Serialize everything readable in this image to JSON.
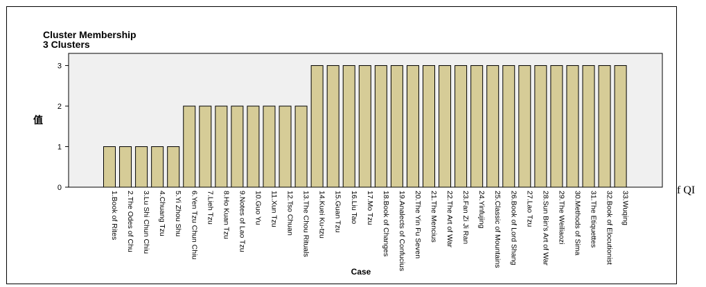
{
  "chart_data": {
    "type": "bar",
    "title": "Cluster Membership",
    "subtitle": "3 Clusters",
    "xlabel": "Case",
    "ylabel": "值",
    "ylim": [
      0,
      3.3
    ],
    "yticks": [
      0,
      1,
      2,
      3
    ],
    "grid": false,
    "colors": {
      "bar": "#d6cc97",
      "bar_stroke": "#000000",
      "plot_bg": "#f0f0f0"
    },
    "categories": [
      "1.Book of Rites",
      "2.The Odes of Chu",
      "3.Lu Shi Chun Chiu",
      "4.Chuang Tzu",
      "5.Yi Zhou Shu",
      "6.Yen Tzu Chun Chiu",
      "7.Lieh Tzu",
      "8.Ho Kuan Tzu",
      "9.Notes of Lao Tzu",
      "10.Guo Yu",
      "11.Xun Tzu",
      "12.Tso Chuan",
      "13.The Chou Rituals",
      "14.Kuei Ku-tzu",
      "15.Guan Tzu",
      "16.Liu Tao",
      "17.Mo Tzu",
      "18.Book of Changes",
      "19.Analects of Confucius",
      "20.The Yin Fu Seven",
      "21.The Mencius",
      "22.The Art of War",
      "23.Fan Zi Ji Ran",
      "24.Yinfujing",
      "25.Classic of Mountains",
      "26.Book of Lord Shang",
      "27.Lao Tzu",
      "28.Sun Bin's Art of War",
      "29.The Weiliaozi",
      "30.Methods of Sima",
      "31.The Etiquettes",
      "32.Book of Elocutionist",
      "33.Wuqing"
    ],
    "values": [
      1,
      1,
      1,
      1,
      1,
      2,
      2,
      2,
      2,
      2,
      2,
      2,
      2,
      3,
      3,
      3,
      3,
      3,
      3,
      3,
      3,
      3,
      3,
      3,
      3,
      3,
      3,
      3,
      3,
      3,
      3,
      3,
      3
    ]
  },
  "side_text": "f QI"
}
